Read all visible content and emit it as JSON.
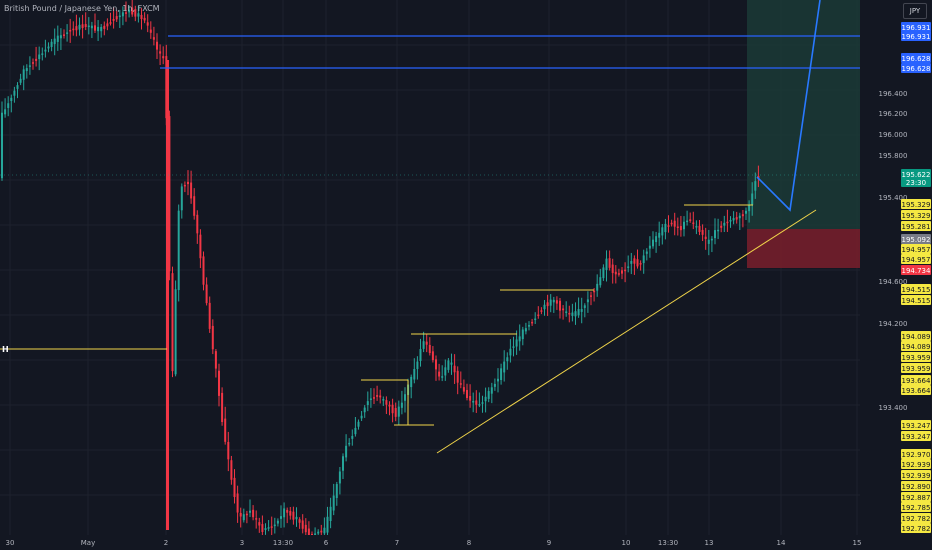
{
  "header": {
    "title": "British Pound / Japanese Yen, 1h, FXCM",
    "currency": "JPY"
  },
  "colors": {
    "background": "#131722",
    "up": "#26a69a",
    "down": "#f23645",
    "grid": "#1e222d",
    "axis_text": "#b2b5be",
    "yellow_lines": "#f0d44a",
    "blue_lines": "#2962ff",
    "target_zone": "#1b3a36",
    "stop_zone": "#7a1f2b",
    "projection": "#2979ff"
  },
  "chart_data": {
    "type": "candlestick",
    "symbol": "GBPJPY",
    "timeframe": "1h",
    "price_axis_ticks": [
      "196.400",
      "196.200",
      "196.000",
      "195.800",
      "195.400",
      "194.600",
      "194.200",
      "193.400"
    ],
    "time_axis_labels": [
      "30",
      "May",
      "2",
      "3",
      "13:30",
      "6",
      "7",
      "8",
      "9",
      "10",
      "13:30",
      "13",
      "14",
      "15"
    ],
    "price_labels": [
      {
        "text": "196.931",
        "color": "blue"
      },
      {
        "text": "196.931",
        "color": "blue"
      },
      {
        "text": "196.628",
        "color": "blue"
      },
      {
        "text": "196.628",
        "color": "blue"
      },
      {
        "text": "195.622",
        "color": "green",
        "sub": "23:30"
      },
      {
        "text": "195.329",
        "color": "yellow"
      },
      {
        "text": "195.329",
        "color": "yellow"
      },
      {
        "text": "195.281",
        "color": "yellow"
      },
      {
        "text": "195.092",
        "color": "gray"
      },
      {
        "text": "194.957",
        "color": "yellow"
      },
      {
        "text": "194.957",
        "color": "yellow"
      },
      {
        "text": "194.734",
        "color": "red"
      },
      {
        "text": "194.515",
        "color": "yellow"
      },
      {
        "text": "194.515",
        "color": "yellow"
      },
      {
        "text": "194.089",
        "color": "yellow"
      },
      {
        "text": "194.089",
        "color": "yellow"
      },
      {
        "text": "193.959",
        "color": "yellow"
      },
      {
        "text": "193.959",
        "color": "yellow"
      },
      {
        "text": "193.664",
        "color": "yellow"
      },
      {
        "text": "193.664",
        "color": "yellow"
      },
      {
        "text": "193.247",
        "color": "yellow"
      },
      {
        "text": "193.247",
        "color": "yellow"
      },
      {
        "text": "192.970",
        "color": "yellow"
      },
      {
        "text": "192.939",
        "color": "yellow"
      },
      {
        "text": "192.939",
        "color": "yellow"
      },
      {
        "text": "192.890",
        "color": "yellow"
      },
      {
        "text": "192.887",
        "color": "yellow"
      },
      {
        "text": "192.785",
        "color": "yellow"
      },
      {
        "text": "192.782",
        "color": "yellow"
      },
      {
        "text": "192.782",
        "color": "yellow"
      }
    ],
    "left_marker": "H",
    "annotations": {
      "resistance_levels": [
        196.931,
        196.628
      ],
      "entry_price": 195.092,
      "stop_price": 194.734,
      "target_price": 196.931,
      "current_price": 195.622,
      "ascending_trendline": {
        "from_price": 193.2,
        "to_price": 195.36
      }
    }
  }
}
